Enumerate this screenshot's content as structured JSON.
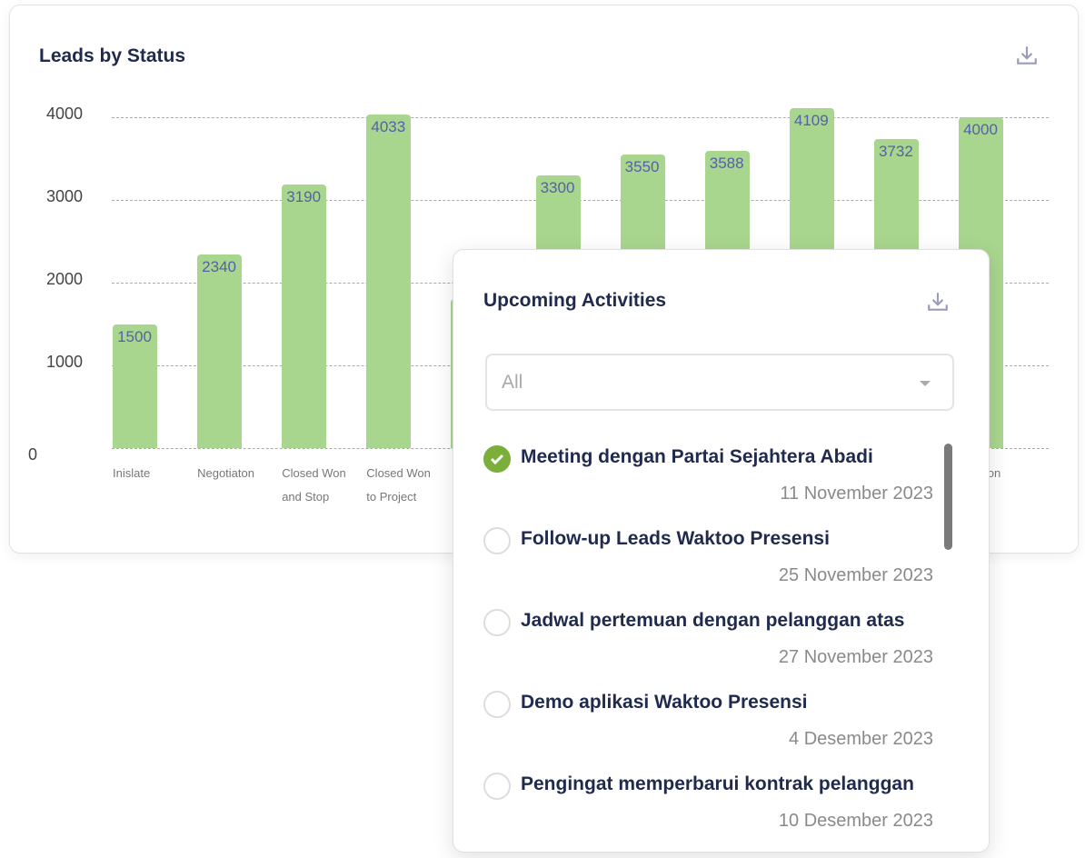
{
  "chart_card": {
    "title": "Leads by Status",
    "download_icon": "download-icon"
  },
  "chart_data": {
    "type": "bar",
    "title": "Leads by Status",
    "yticks": [
      "0",
      "1000",
      "2000",
      "3000",
      "4000"
    ],
    "ylim": [
      0,
      4000
    ],
    "grid": true,
    "categories": [
      "Inislate",
      "Negotiaton",
      "Closed Won and Stop",
      "Closed Won to Project",
      "",
      "",
      "",
      "",
      "",
      "",
      "Presentation Meeting"
    ],
    "category_lines": [
      [
        "Inislate",
        ""
      ],
      [
        "Negotiaton",
        ""
      ],
      [
        "Closed Won",
        "and Stop"
      ],
      [
        "Closed Won",
        "to Project"
      ],
      [
        "",
        ""
      ],
      [
        "",
        ""
      ],
      [
        "",
        ""
      ],
      [
        "",
        ""
      ],
      [
        "",
        ""
      ],
      [
        "",
        ""
      ],
      [
        "entation",
        "ting"
      ]
    ],
    "values": [
      1500,
      2340,
      3190,
      4033,
      1800,
      3300,
      3550,
      3588,
      4109,
      3732,
      4000
    ],
    "value_labels": [
      "1500",
      "2340",
      "3190",
      "4033",
      "",
      "3300",
      "3550",
      "3588",
      "4109",
      "3732",
      "4000"
    ],
    "bar_color": "#a9d68e"
  },
  "activities": {
    "title": "Upcoming Activities",
    "filter_value": "All",
    "items": [
      {
        "title": "Meeting dengan Partai Sejahtera Abadi",
        "date": "11 November 2023",
        "done": true
      },
      {
        "title": "Follow-up Leads Waktoo Presensi",
        "date": "25 November 2023",
        "done": false
      },
      {
        "title": "Jadwal pertemuan dengan pelanggan atas",
        "date": "27 November 2023",
        "done": false
      },
      {
        "title": "Demo aplikasi Waktoo Presensi",
        "date": "4 Desember 2023",
        "done": false
      },
      {
        "title": "Pengingat memperbarui kontrak pelanggan",
        "date": "10 Desember 2023",
        "done": false
      }
    ]
  }
}
